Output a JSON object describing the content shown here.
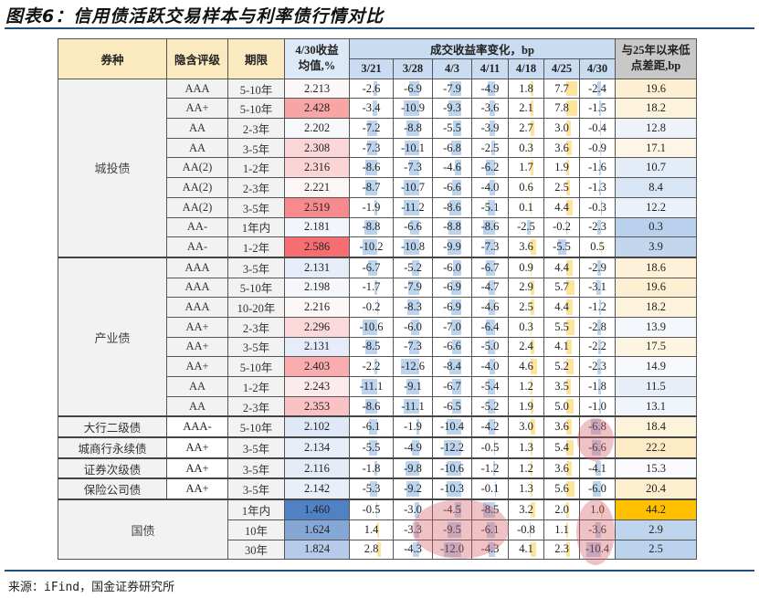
{
  "title": "图表6：信用债活跃交易样本与利率债行情对比",
  "source": "来源：iFind，国金证券研究所",
  "header": {
    "col_type": "券种",
    "col_rating": "隐含评级",
    "col_term": "期限",
    "col_yield": "4/30收益均值,%",
    "col_change_group": "成交收益率变化，bp",
    "dates": [
      "3/21",
      "3/28",
      "4/3",
      "4/11",
      "4/18",
      "4/25",
      "4/30"
    ],
    "col_gap": "与25年以来低点差距,bp"
  },
  "colors": {
    "header_yellow": "#fbe9c0",
    "header_blue": "#dce9f7",
    "neg_bar": "#bcd4ee",
    "pos_bar": "#fde49a",
    "highlight_circle": "#d6606a",
    "max_gap": "#ffc000"
  },
  "groups": [
    {
      "name": "城投债",
      "rows": 9
    },
    {
      "name": "产业债",
      "rows": 8
    },
    {
      "name": "大行二级债",
      "rows": 1
    },
    {
      "name": "城商行永续债",
      "rows": 1
    },
    {
      "name": "证券次级债",
      "rows": 1
    },
    {
      "name": "保险公司债",
      "rows": 1
    },
    {
      "name": "国债",
      "rows": 3
    }
  ],
  "rows": [
    {
      "rating": "AAA",
      "term": "5-10年",
      "yield": "2.213",
      "yield_bg": "#fdf8f8",
      "changes": [
        -2.6,
        -6.9,
        -7.9,
        -4.9,
        1.8,
        7.7,
        -2.4
      ],
      "gap": "19.6",
      "gap_bg": "#fdf0d2"
    },
    {
      "rating": "AA+",
      "term": "5-10年",
      "yield": "2.428",
      "yield_bg": "#f8a5a6",
      "changes": [
        -3.4,
        -10.9,
        -9.3,
        -3.6,
        2.1,
        7.8,
        -1.5
      ],
      "gap": "18.2",
      "gap_bg": "#fdf3dc"
    },
    {
      "rating": "AA",
      "term": "2-3年",
      "yield": "2.202",
      "yield_bg": "#f6f8fc",
      "changes": [
        -7.2,
        -8.8,
        -5.5,
        -3.9,
        2.7,
        3.0,
        -0.4
      ],
      "gap": "12.8",
      "gap_bg": "#eef3fa"
    },
    {
      "rating": "AA",
      "term": "3-5年",
      "yield": "2.308",
      "yield_bg": "#fbd6d8",
      "changes": [
        -7.3,
        -10.1,
        -6.8,
        -2.5,
        0.3,
        3.6,
        -0.9
      ],
      "gap": "17.1",
      "gap_bg": "#fdf6e6"
    },
    {
      "rating": "AA(2)",
      "term": "1-2年",
      "yield": "2.316",
      "yield_bg": "#fbd4d6",
      "changes": [
        -8.6,
        -7.3,
        -4.6,
        -6.2,
        1.7,
        1.9,
        -1.6
      ],
      "gap": "10.7",
      "gap_bg": "#e3ecf7"
    },
    {
      "rating": "AA(2)",
      "term": "2-3年",
      "yield": "2.221",
      "yield_bg": "#fdf6f6",
      "changes": [
        -8.7,
        -10.7,
        -6.6,
        -4.0,
        0.6,
        2.5,
        -1.3
      ],
      "gap": "8.4",
      "gap_bg": "#d8e5f4"
    },
    {
      "rating": "AA(2)",
      "term": "3-5年",
      "yield": "2.519",
      "yield_bg": "#f78a8c",
      "changes": [
        -1.9,
        -11.2,
        -8.6,
        -5.1,
        0.1,
        4.4,
        -0.3
      ],
      "gap": "12.2",
      "gap_bg": "#ebf1f9"
    },
    {
      "rating": "AA-",
      "term": "1年内",
      "yield": "2.181",
      "yield_bg": "#f2f5fb",
      "changes": [
        -8.8,
        -6.6,
        -8.8,
        -8.6,
        -2.5,
        -0.2,
        -2.3
      ],
      "gap": "0.3",
      "gap_bg": "#b9d1ec"
    },
    {
      "rating": "AA-",
      "term": "1-2年",
      "yield": "2.586",
      "yield_bg": "#f66e71",
      "changes": [
        -10.2,
        -10.8,
        -9.9,
        -7.3,
        3.6,
        -5.5,
        0.5
      ],
      "gap": "3.9",
      "gap_bg": "#c2d7ee"
    },
    {
      "rating": "AAA",
      "term": "3-5年",
      "yield": "2.131",
      "yield_bg": "#e6edf8",
      "changes": [
        -6.7,
        -5.2,
        -6.0,
        -6.7,
        0.9,
        4.4,
        -2.9
      ],
      "gap": "18.6",
      "gap_bg": "#fdf2d9"
    },
    {
      "rating": "AAA",
      "term": "5-10年",
      "yield": "2.198",
      "yield_bg": "#f5f7fc",
      "changes": [
        -1.7,
        -7.9,
        -6.9,
        -4.7,
        2.9,
        5.7,
        -3.1
      ],
      "gap": "19.6",
      "gap_bg": "#fdf0d2"
    },
    {
      "rating": "AAA",
      "term": "10-20年",
      "yield": "2.216",
      "yield_bg": "#fdf8f8",
      "changes": [
        -0.2,
        -8.3,
        -6.9,
        -4.6,
        2.5,
        4.4,
        -1.2
      ],
      "gap": "18.2",
      "gap_bg": "#fdf3dc"
    },
    {
      "rating": "AA+",
      "term": "2-3年",
      "yield": "2.296",
      "yield_bg": "#fbd9da",
      "changes": [
        -10.6,
        -6.0,
        -7.0,
        -6.4,
        0.3,
        5.5,
        -2.8
      ],
      "gap": "13.9",
      "gap_bg": "#f4f7fc"
    },
    {
      "rating": "AA+",
      "term": "3-5年",
      "yield": "2.131",
      "yield_bg": "#e6edf8",
      "changes": [
        -8.5,
        -7.3,
        -6.6,
        -5.0,
        2.4,
        4.1,
        -2.2
      ],
      "gap": "17.5",
      "gap_bg": "#fdf5e2"
    },
    {
      "rating": "AA+",
      "term": "5-10年",
      "yield": "2.403",
      "yield_bg": "#f9adae",
      "changes": [
        -2.2,
        -12.6,
        -8.4,
        -4.0,
        4.6,
        5.2,
        -2.3
      ],
      "gap": "14.9",
      "gap_bg": "#f8f9fd"
    },
    {
      "rating": "AA",
      "term": "1-2年",
      "yield": "2.243",
      "yield_bg": "#fcebec",
      "changes": [
        -11.1,
        -9.1,
        -6.7,
        -5.4,
        1.2,
        3.5,
        -1.8
      ],
      "gap": "11.5",
      "gap_bg": "#e7eef8"
    },
    {
      "rating": "AA",
      "term": "2-3年",
      "yield": "2.353",
      "yield_bg": "#fac2c4",
      "changes": [
        -8.6,
        -11.1,
        -6.5,
        -5.2,
        1.9,
        5.0,
        -1.0
      ],
      "gap": "13.1",
      "gap_bg": "#f0f4fb"
    },
    {
      "rating": "AAA-",
      "term": "5-10年",
      "yield": "2.102",
      "yield_bg": "#dfe8f6",
      "changes": [
        -6.1,
        -1.9,
        -10.4,
        -4.2,
        3.0,
        3.6,
        -6.8
      ],
      "gap": "18.4",
      "gap_bg": "#fdf2da"
    },
    {
      "rating": "AA+",
      "term": "3-5年",
      "yield": "2.134",
      "yield_bg": "#e7eef8",
      "changes": [
        -5.5,
        -4.9,
        -12.2,
        -0.5,
        1.3,
        5.4,
        -6.6
      ],
      "gap": "22.2",
      "gap_bg": "#fcebc4"
    },
    {
      "rating": "AA+",
      "term": "3-5年",
      "yield": "2.116",
      "yield_bg": "#e3ebf7",
      "changes": [
        -1.8,
        -9.8,
        -10.6,
        -1.2,
        1.2,
        3.6,
        -4.1
      ],
      "gap": "15.3",
      "gap_bg": "#fafbfe"
    },
    {
      "rating": "AA+",
      "term": "3-5年",
      "yield": "2.142",
      "yield_bg": "#e9eff9",
      "changes": [
        -5.3,
        -9.2,
        -10.3,
        -0.1,
        1.3,
        5.6,
        -6.0
      ],
      "gap": "20.4",
      "gap_bg": "#fdefcd"
    },
    {
      "rating": "",
      "term": "1年内",
      "yield": "1.460",
      "yield_bg": "#4f81c4",
      "changes": [
        -0.5,
        -3.0,
        -4.5,
        -8.5,
        3.2,
        2.0,
        1.0
      ],
      "gap": "44.2",
      "gap_bg": "#ffc000"
    },
    {
      "rating": "",
      "term": "10年",
      "yield": "1.624",
      "yield_bg": "#84a7d6",
      "changes": [
        1.4,
        -3.3,
        -9.5,
        -6.1,
        -0.8,
        1.1,
        -3.6
      ],
      "gap": "2.9",
      "gap_bg": "#bed4ed"
    },
    {
      "rating": "",
      "term": "30年",
      "yield": "1.824",
      "yield_bg": "#b6cbe9",
      "changes": [
        2.8,
        -4.3,
        -12.0,
        -4.3,
        4.1,
        2.3,
        -10.4
      ],
      "gap": "2.5",
      "gap_bg": "#bcd3ed"
    }
  ]
}
